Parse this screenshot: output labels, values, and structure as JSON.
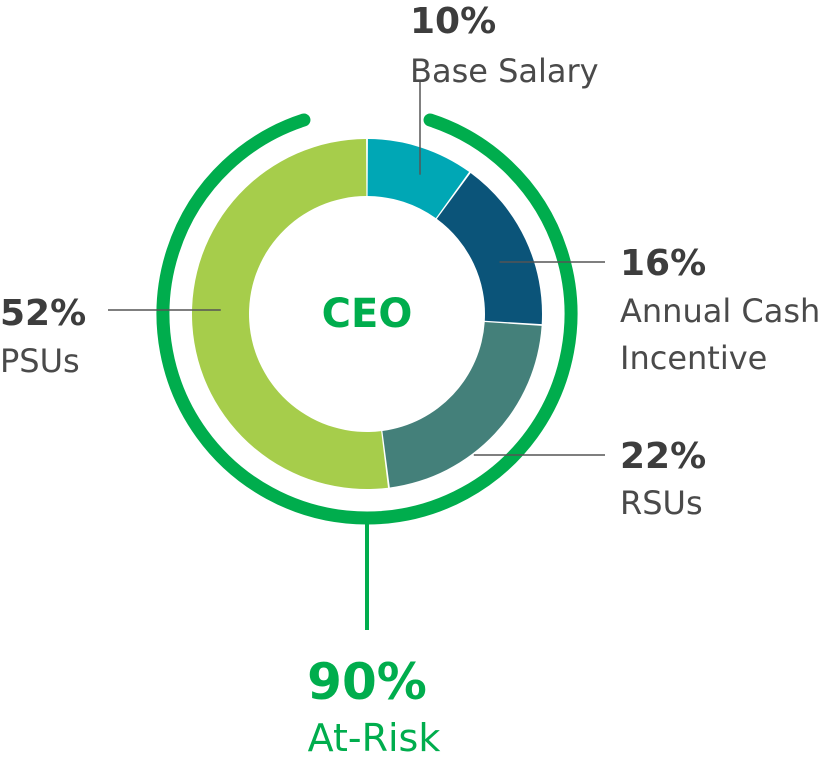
{
  "chart_data": {
    "type": "pie",
    "center_label": "CEO",
    "series": [
      {
        "name": "Base Salary",
        "value": 10,
        "label": "10%",
        "color": "#00a7b5",
        "label_lines": [
          "Base Salary"
        ]
      },
      {
        "name": "Annual Cash Incentive",
        "value": 16,
        "label": "16%",
        "color": "#0b5479",
        "label_lines": [
          "Annual Cash",
          "Incentive"
        ]
      },
      {
        "name": "RSUs",
        "value": 22,
        "label": "22%",
        "color": "#44807a",
        "label_lines": [
          "RSUs"
        ]
      },
      {
        "name": "PSUs",
        "value": 52,
        "label": "52%",
        "color": "#a6cd4b",
        "label_lines": [
          "PSUs"
        ]
      }
    ],
    "at_risk": {
      "value": 90,
      "label": "90%",
      "text": "At-Risk",
      "color": "#00ad4d"
    }
  },
  "colors": {
    "accent": "#00ad4d",
    "text_dark": "#3d3d3d",
    "leader_line": "#555555"
  }
}
